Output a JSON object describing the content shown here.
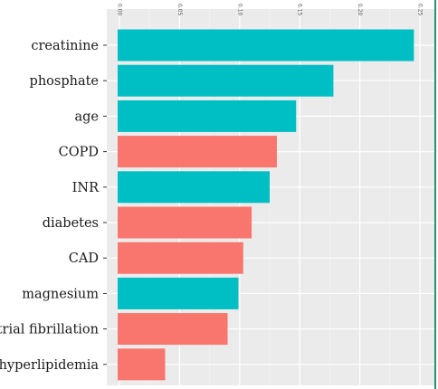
{
  "chart_data": {
    "type": "bar",
    "orientation": "horizontal",
    "categories": [
      "creatinine",
      "phosphate",
      "age",
      "COPD",
      "INR",
      "diabetes",
      "CAD",
      "magnesium",
      "atrial fibrillation",
      "hyperlipidemia"
    ],
    "values": [
      0.245,
      0.178,
      0.147,
      0.131,
      0.125,
      0.11,
      0.103,
      0.099,
      0.09,
      0.038
    ],
    "bar_colors": [
      "#00BFC4",
      "#00BFC4",
      "#00BFC4",
      "#F8766D",
      "#00BFC4",
      "#F8766D",
      "#F8766D",
      "#00BFC4",
      "#F8766D",
      "#F8766D"
    ],
    "x_ticks": [
      "0.00",
      "0.05",
      "0.10",
      "0.15",
      "0.20",
      "0.25"
    ],
    "x_tick_values": [
      0,
      0.05,
      0.1,
      0.15,
      0.2,
      0.25
    ],
    "xlim": [
      -0.003,
      0.252
    ],
    "x_axis_position": "top",
    "background": "#EBEBEB",
    "grid": true
  }
}
